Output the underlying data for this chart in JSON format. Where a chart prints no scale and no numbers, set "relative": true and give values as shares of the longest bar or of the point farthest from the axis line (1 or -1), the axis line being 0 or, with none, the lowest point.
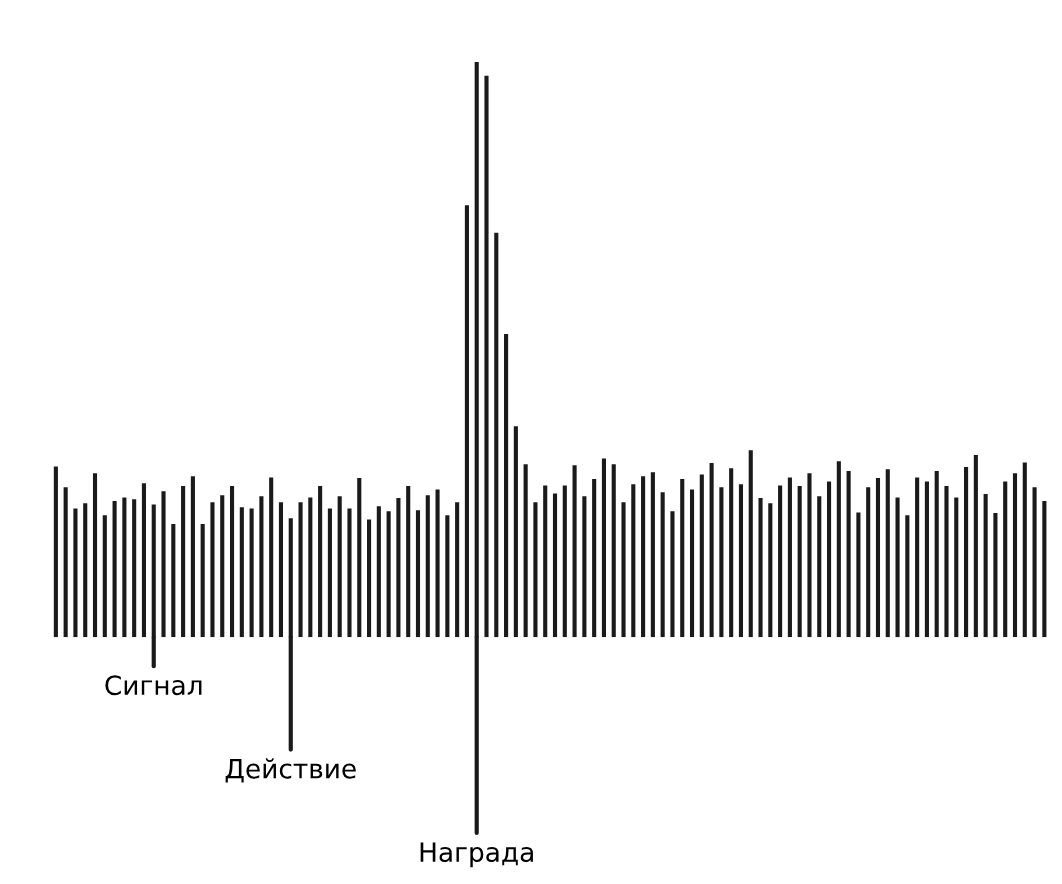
{
  "chart_data": {
    "type": "bar",
    "relative": true,
    "color": "#1a1a1a",
    "categories": [
      null,
      null,
      null,
      null,
      null,
      null,
      null,
      null,
      null,
      null,
      null,
      null,
      null,
      null,
      null,
      null,
      null,
      null,
      null,
      null,
      null,
      null,
      null,
      null,
      null,
      null,
      null,
      null,
      null,
      null,
      null,
      null,
      null,
      null,
      null,
      null,
      null,
      null,
      null,
      null,
      null,
      null,
      null,
      null,
      null,
      null,
      null,
      null,
      null,
      null,
      null,
      null,
      null,
      null,
      null,
      null,
      null,
      null,
      null,
      null,
      null,
      null,
      null,
      null,
      null,
      null,
      null,
      null,
      null,
      null,
      null,
      null,
      null,
      null,
      null,
      null,
      null,
      null,
      null,
      null,
      null,
      null,
      null,
      null,
      null,
      null,
      null,
      null,
      null,
      null,
      null,
      null,
      null,
      null,
      null,
      null,
      null,
      null,
      null,
      null,
      null,
      null
    ],
    "values": [
      0.297,
      0.261,
      0.224,
      0.233,
      0.285,
      0.212,
      0.237,
      0.243,
      0.24,
      0.268,
      0.231,
      0.254,
      0.197,
      0.263,
      0.28,
      0.197,
      0.235,
      0.247,
      0.263,
      0.226,
      0.224,
      0.245,
      0.278,
      0.235,
      0.207,
      0.235,
      0.243,
      0.263,
      0.224,
      0.245,
      0.224,
      0.277,
      0.205,
      0.228,
      0.219,
      0.242,
      0.263,
      0.221,
      0.247,
      0.257,
      0.212,
      0.235,
      0.751,
      1,
      0.976,
      0.703,
      0.527,
      0.367,
      0.301,
      0.235,
      0.264,
      0.25,
      0.264,
      0.299,
      0.245,
      0.275,
      0.311,
      0.301,
      0.235,
      0.266,
      0.28,
      0.287,
      0.252,
      0.219,
      0.275,
      0.257,
      0.283,
      0.303,
      0.261,
      0.294,
      0.266,
      0.325,
      0.242,
      0.233,
      0.264,
      0.278,
      0.263,
      0.285,
      0.245,
      0.271,
      0.306,
      0.289,
      0.217,
      0.261,
      0.277,
      0.292,
      0.243,
      0.212,
      0.278,
      0.271,
      0.289,
      0.263,
      0.243,
      0.296,
      0.317,
      0.249,
      0.216,
      0.271,
      0.285,
      0.304,
      0.261,
      0.237
    ],
    "annotations": [
      "Сигнал",
      "Действие",
      "Награда"
    ]
  }
}
